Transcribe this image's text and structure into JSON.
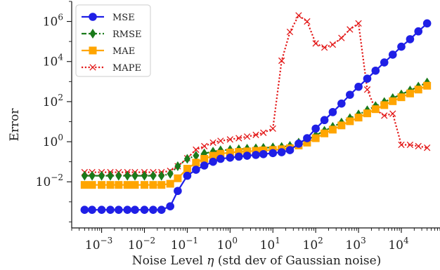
{
  "chart_data": {
    "type": "line",
    "xlabel": "Noise Level η (std dev of Gaussian noise)",
    "ylabel": "Error",
    "xscale": "log",
    "yscale": "log",
    "xlim": [
      0.0002,
      80000
    ],
    "ylim": [
      5e-05,
      10000000.0
    ],
    "x_ticks": [
      {
        "value": 0.001,
        "base": "10",
        "exp": "−3"
      },
      {
        "value": 0.01,
        "base": "10",
        "exp": "−2"
      },
      {
        "value": 0.1,
        "base": "10",
        "exp": "−1"
      },
      {
        "value": 1,
        "base": "10",
        "exp": "0"
      },
      {
        "value": 10,
        "base": "10",
        "exp": "1"
      },
      {
        "value": 100,
        "base": "10",
        "exp": "2"
      },
      {
        "value": 1000,
        "base": "10",
        "exp": "3"
      },
      {
        "value": 10000,
        "base": "10",
        "exp": "4"
      }
    ],
    "y_ticks": [
      {
        "value": 0.01,
        "base": "10",
        "exp": "−2"
      },
      {
        "value": 1,
        "base": "10",
        "exp": "0"
      },
      {
        "value": 100,
        "base": "10",
        "exp": "2"
      },
      {
        "value": 10000,
        "base": "10",
        "exp": "4"
      },
      {
        "value": 1000000,
        "base": "10",
        "exp": "6"
      }
    ],
    "grid": false,
    "legend_position": "top-left",
    "x": [
      0.0004,
      0.0006,
      0.001,
      0.0016,
      0.0025,
      0.004,
      0.006,
      0.01,
      0.016,
      0.025,
      0.04,
      0.06,
      0.1,
      0.16,
      0.25,
      0.4,
      0.6,
      1,
      1.6,
      2.5,
      4,
      6,
      10,
      16,
      25,
      40,
      63,
      100,
      160,
      250,
      400,
      630,
      1000,
      1600,
      2500,
      4000,
      6300,
      10000,
      16000,
      25000,
      40000
    ],
    "series": [
      {
        "name": "MSE",
        "color": "#1f1fe6",
        "linestyle": "solid",
        "marker": "circle",
        "values": [
          0.0004,
          0.0004,
          0.0004,
          0.0004,
          0.0004,
          0.0004,
          0.0004,
          0.0004,
          0.0004,
          0.0004,
          0.0006,
          0.0035,
          0.02,
          0.04,
          0.065,
          0.1,
          0.14,
          0.16,
          0.18,
          0.2,
          0.22,
          0.24,
          0.27,
          0.3,
          0.38,
          0.8,
          1.5,
          4.5,
          12,
          30,
          80,
          220,
          550,
          1400,
          3500,
          9000,
          22000,
          55000,
          130000,
          320000,
          800000
        ]
      },
      {
        "name": "RMSE",
        "color": "#1a7a1a",
        "linestyle": "dashdot",
        "marker": "diamond",
        "values": [
          0.02,
          0.02,
          0.02,
          0.02,
          0.02,
          0.02,
          0.02,
          0.02,
          0.02,
          0.02,
          0.025,
          0.06,
          0.14,
          0.2,
          0.26,
          0.32,
          0.37,
          0.4,
          0.42,
          0.45,
          0.47,
          0.49,
          0.52,
          0.55,
          0.62,
          0.9,
          1.2,
          2.1,
          3.5,
          5.5,
          9,
          15,
          23,
          37,
          60,
          95,
          150,
          230,
          360,
          560,
          900
        ]
      },
      {
        "name": "MAE",
        "color": "#ffa500",
        "linestyle": "solid",
        "marker": "square",
        "values": [
          0.007,
          0.007,
          0.007,
          0.007,
          0.007,
          0.007,
          0.007,
          0.007,
          0.007,
          0.007,
          0.008,
          0.015,
          0.045,
          0.09,
          0.14,
          0.2,
          0.25,
          0.29,
          0.31,
          0.33,
          0.35,
          0.37,
          0.39,
          0.42,
          0.47,
          0.65,
          0.9,
          1.5,
          2.6,
          4,
          6.5,
          10.5,
          16,
          26,
          42,
          67,
          105,
          165,
          255,
          400,
          620
        ]
      },
      {
        "name": "MAPE",
        "color": "#e31a1a",
        "linestyle": "dotted",
        "marker": "x",
        "values": [
          0.03,
          0.03,
          0.03,
          0.03,
          0.03,
          0.03,
          0.03,
          0.03,
          0.03,
          0.03,
          0.035,
          0.06,
          0.15,
          0.4,
          0.6,
          0.9,
          1.1,
          1.3,
          1.5,
          1.8,
          2.2,
          2.8,
          4.5,
          11000,
          300000,
          2000000,
          1000000,
          80000,
          50000,
          70000,
          150000,
          400000,
          800000,
          400,
          40,
          20,
          25,
          0.7,
          0.7,
          0.6,
          0.5
        ]
      }
    ]
  }
}
